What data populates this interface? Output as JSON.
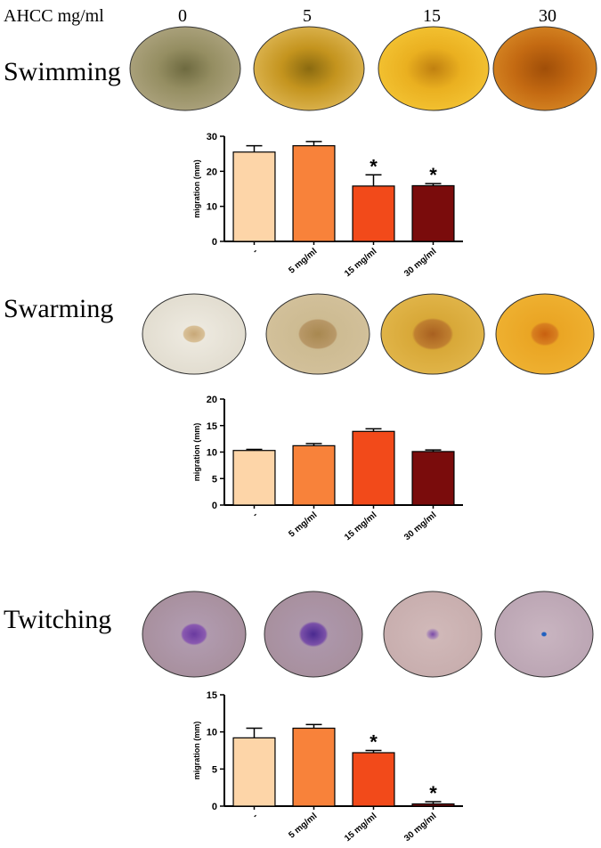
{
  "figure": {
    "header_label": "AHCC mg/ml",
    "concentrations": [
      "0",
      "5",
      "15",
      "30"
    ],
    "row_labels": [
      "Swimming",
      "Swarming",
      "Twitching"
    ]
  },
  "chart_data": [
    {
      "type": "bar",
      "y_label": "migration (mm)",
      "categories": [
        "-",
        "5 mg/ml",
        "15 mg/ml",
        "30 mg/ml"
      ],
      "values": [
        25.5,
        27.3,
        15.8,
        15.9
      ],
      "errors": [
        1.8,
        1.2,
        3.2,
        0.6
      ],
      "significance": [
        null,
        null,
        "*",
        "*"
      ],
      "colors": [
        "#fdd5a8",
        "#f8823a",
        "#f24a1a",
        "#7a0c0c"
      ],
      "ylim": [
        0,
        30
      ],
      "yticks": [
        0,
        10,
        20,
        30
      ]
    },
    {
      "type": "bar",
      "y_label": "migration (mm)",
      "categories": [
        "-",
        "5 mg/ml",
        "15 mg/ml",
        "30 mg/ml"
      ],
      "values": [
        10.3,
        11.2,
        13.9,
        10.1
      ],
      "errors": [
        0.2,
        0.4,
        0.5,
        0.3
      ],
      "significance": [
        null,
        null,
        null,
        null
      ],
      "colors": [
        "#fdd5a8",
        "#f8823a",
        "#f24a1a",
        "#7a0c0c"
      ],
      "ylim": [
        0,
        20
      ],
      "yticks": [
        0,
        5,
        10,
        15,
        20
      ]
    },
    {
      "type": "bar",
      "y_label": "migration (mm)",
      "categories": [
        "-",
        "5 mg/ml",
        "15 mg/ml",
        "30 mg/ml"
      ],
      "values": [
        9.2,
        10.5,
        7.2,
        0.3
      ],
      "errors": [
        1.3,
        0.5,
        0.3,
        0.3
      ],
      "significance": [
        null,
        null,
        "*",
        "*"
      ],
      "colors": [
        "#fdd5a8",
        "#f8823a",
        "#f24a1a",
        "#7a0c0c"
      ],
      "ylim": [
        0,
        15
      ],
      "yticks": [
        0,
        5,
        10,
        15
      ]
    }
  ]
}
